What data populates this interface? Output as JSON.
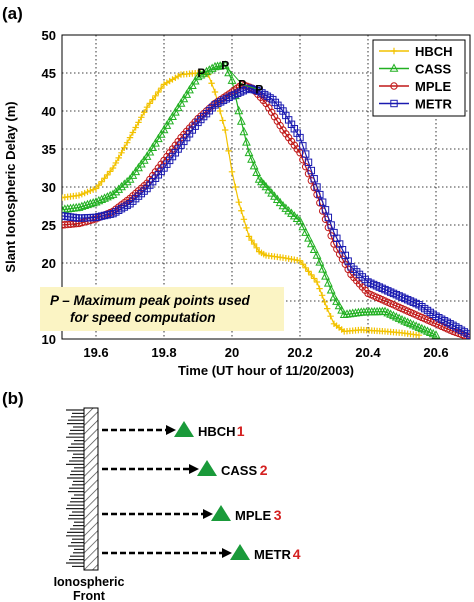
{
  "panel_a_label": "(a)",
  "panel_b_label": "(b)",
  "chart_data": {
    "type": "line",
    "title": "",
    "xlabel": "Time (UT hour of 11/20/2003)",
    "ylabel": "Slant Ionospheric Delay (m)",
    "xlim": [
      19.5,
      20.7
    ],
    "ylim": [
      10,
      50
    ],
    "xticks": [
      19.6,
      19.8,
      20.0,
      20.2,
      20.4,
      20.6
    ],
    "xtick_labels": [
      "19.6",
      "19.8",
      "20",
      "20.2",
      "20.4",
      "20.6"
    ],
    "yticks": [
      10,
      15,
      20,
      25,
      30,
      35,
      40,
      45,
      50
    ],
    "grid": true,
    "legend_position": "top-right",
    "series": [
      {
        "name": "HBCH",
        "color": "#f2c200",
        "marker": "plus",
        "points": [
          [
            19.5,
            28.6
          ],
          [
            19.55,
            28.9
          ],
          [
            19.6,
            29.8
          ],
          [
            19.65,
            32.5
          ],
          [
            19.7,
            36.5
          ],
          [
            19.75,
            40.5
          ],
          [
            19.8,
            43.5
          ],
          [
            19.85,
            44.8
          ],
          [
            19.9,
            45.0
          ],
          [
            19.93,
            44.8
          ],
          [
            19.95,
            42.5
          ],
          [
            19.98,
            37.5
          ],
          [
            20.0,
            32.0
          ],
          [
            20.02,
            28.0
          ],
          [
            20.05,
            23.5
          ],
          [
            20.08,
            21.5
          ],
          [
            20.1,
            21.0
          ],
          [
            20.15,
            20.7
          ],
          [
            20.2,
            20.3
          ],
          [
            20.25,
            17.5
          ],
          [
            20.28,
            14.0
          ],
          [
            20.3,
            12.0
          ],
          [
            20.33,
            11.0
          ],
          [
            20.38,
            11.2
          ],
          [
            20.45,
            11.0
          ],
          [
            20.5,
            10.8
          ],
          [
            20.55,
            10.5
          ]
        ]
      },
      {
        "name": "CASS",
        "color": "#22b022",
        "marker": "triangle",
        "points": [
          [
            19.5,
            27.0
          ],
          [
            19.55,
            27.3
          ],
          [
            19.6,
            28.0
          ],
          [
            19.65,
            29.0
          ],
          [
            19.7,
            31.0
          ],
          [
            19.75,
            34.0
          ],
          [
            19.8,
            37.5
          ],
          [
            19.85,
            41.0
          ],
          [
            19.9,
            44.5
          ],
          [
            19.95,
            45.8
          ],
          [
            19.98,
            46.0
          ],
          [
            20.0,
            44.0
          ],
          [
            20.02,
            40.0
          ],
          [
            20.05,
            34.5
          ],
          [
            20.08,
            31.0
          ],
          [
            20.1,
            30.0
          ],
          [
            20.15,
            27.5
          ],
          [
            20.2,
            25.5
          ],
          [
            20.25,
            21.0
          ],
          [
            20.3,
            15.5
          ],
          [
            20.33,
            13.2
          ],
          [
            20.38,
            13.5
          ],
          [
            20.45,
            13.6
          ],
          [
            20.5,
            12.5
          ],
          [
            20.55,
            11.5
          ],
          [
            20.6,
            10.5
          ]
        ]
      },
      {
        "name": "MPLE",
        "color": "#c01818",
        "marker": "circle",
        "points": [
          [
            19.5,
            25.0
          ],
          [
            19.55,
            25.2
          ],
          [
            19.6,
            25.8
          ],
          [
            19.65,
            26.8
          ],
          [
            19.7,
            28.5
          ],
          [
            19.75,
            30.5
          ],
          [
            19.8,
            33.5
          ],
          [
            19.85,
            36.5
          ],
          [
            19.9,
            39.0
          ],
          [
            19.95,
            41.0
          ],
          [
            20.0,
            42.5
          ],
          [
            20.03,
            43.5
          ],
          [
            20.06,
            43.0
          ],
          [
            20.1,
            41.0
          ],
          [
            20.15,
            37.5
          ],
          [
            20.2,
            34.5
          ],
          [
            20.25,
            29.0
          ],
          [
            20.3,
            22.5
          ],
          [
            20.35,
            18.5
          ],
          [
            20.4,
            16.0
          ],
          [
            20.45,
            15.0
          ],
          [
            20.5,
            14.0
          ],
          [
            20.55,
            13.0
          ],
          [
            20.6,
            12.0
          ],
          [
            20.65,
            11.0
          ],
          [
            20.7,
            10.2
          ]
        ]
      },
      {
        "name": "METR",
        "color": "#1a1ab0",
        "marker": "square",
        "points": [
          [
            19.5,
            26.2
          ],
          [
            19.55,
            25.9
          ],
          [
            19.6,
            26.0
          ],
          [
            19.65,
            26.5
          ],
          [
            19.7,
            27.8
          ],
          [
            19.75,
            29.8
          ],
          [
            19.8,
            32.5
          ],
          [
            19.85,
            35.5
          ],
          [
            19.9,
            38.5
          ],
          [
            19.95,
            40.8
          ],
          [
            20.0,
            42.0
          ],
          [
            20.05,
            43.0
          ],
          [
            20.08,
            42.6
          ],
          [
            20.12,
            41.5
          ],
          [
            20.15,
            40.0
          ],
          [
            20.2,
            36.5
          ],
          [
            20.25,
            30.0
          ],
          [
            20.3,
            24.0
          ],
          [
            20.35,
            19.5
          ],
          [
            20.4,
            17.5
          ],
          [
            20.45,
            16.5
          ],
          [
            20.5,
            15.5
          ],
          [
            20.55,
            14.5
          ],
          [
            20.6,
            13.0
          ],
          [
            20.65,
            11.8
          ],
          [
            20.7,
            10.5
          ]
        ]
      }
    ],
    "peak_marker": "P",
    "peak_points": [
      [
        19.91,
        45.0
      ],
      [
        19.98,
        46.0
      ],
      [
        20.03,
        43.5
      ],
      [
        20.08,
        42.8
      ]
    ],
    "peak_link_color": "#22b022",
    "annotation_line1": "P – Maximum peak points used",
    "annotation_line2": "for speed computation",
    "annotation_bg": "#fbf4c4"
  },
  "diagram": {
    "front_label_line1": "Ionospheric",
    "front_label_line2": "Front",
    "triangle_color": "#1a9a3a",
    "number_color": "#d42020",
    "stations": [
      {
        "name": "HBCH",
        "num": "1"
      },
      {
        "name": "CASS",
        "num": "2"
      },
      {
        "name": "MPLE",
        "num": "3"
      },
      {
        "name": "METR",
        "num": "4"
      }
    ]
  }
}
